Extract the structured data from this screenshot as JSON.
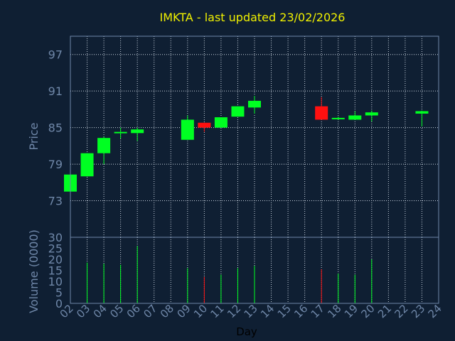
{
  "title": "IMKTA - last updated 23/02/2026",
  "colors": {
    "background": "#0f1f33",
    "frame": "#6f87a8",
    "grid": "#c8d2de",
    "axis_text": "#6f87a8",
    "title": "#f0f000",
    "up": "#00ff22",
    "down": "#ff1010",
    "xlabel": "#000000"
  },
  "chart_data": [
    {
      "type": "candlestick",
      "ylabel": "Price",
      "yticks": [
        73,
        79,
        85,
        91,
        97
      ],
      "ylim": [
        67,
        100
      ],
      "grid": true,
      "candles": [
        {
          "x": "02",
          "open": 74.5,
          "high": 77.3,
          "low": 74.5,
          "close": 77.3
        },
        {
          "x": "03",
          "open": 77.0,
          "high": 80.8,
          "low": 77.0,
          "close": 80.8
        },
        {
          "x": "04",
          "open": 80.8,
          "high": 83.5,
          "low": 79.0,
          "close": 83.3
        },
        {
          "x": "05",
          "open": 84.1,
          "high": 85.0,
          "low": 83.2,
          "close": 84.3
        },
        {
          "x": "06",
          "open": 84.1,
          "high": 85.0,
          "low": 82.8,
          "close": 84.7
        },
        {
          "x": "09",
          "open": 83.0,
          "high": 87.0,
          "low": 83.0,
          "close": 86.3
        },
        {
          "x": "10",
          "open": 85.8,
          "high": 85.8,
          "low": 84.3,
          "close": 85.0
        },
        {
          "x": "11",
          "open": 85.0,
          "high": 86.7,
          "low": 85.0,
          "close": 86.7
        },
        {
          "x": "12",
          "open": 86.8,
          "high": 88.5,
          "low": 86.8,
          "close": 88.5
        },
        {
          "x": "13",
          "open": 88.3,
          "high": 90.2,
          "low": 87.3,
          "close": 89.4
        },
        {
          "x": "17",
          "open": 88.5,
          "high": 90.0,
          "low": 86.3,
          "close": 86.3
        },
        {
          "x": "18",
          "open": 86.5,
          "high": 86.8,
          "low": 86.3,
          "close": 86.6
        },
        {
          "x": "19",
          "open": 86.3,
          "high": 87.7,
          "low": 86.3,
          "close": 87.0
        },
        {
          "x": "20",
          "open": 87.0,
          "high": 87.8,
          "low": 86.0,
          "close": 87.5
        },
        {
          "x": "23",
          "open": 87.3,
          "high": 87.8,
          "low": 85.2,
          "close": 87.7
        }
      ]
    },
    {
      "type": "bar",
      "ylabel": "Volume (0000)",
      "yticks": [
        0,
        5,
        10,
        15,
        20,
        25,
        30
      ],
      "ylim": [
        0,
        30
      ],
      "xlabel": "Day",
      "categories": [
        "02",
        "03",
        "04",
        "05",
        "06",
        "07",
        "08",
        "09",
        "10",
        "11",
        "12",
        "13",
        "14",
        "15",
        "16",
        "17",
        "18",
        "19",
        "20",
        "21",
        "22",
        "23",
        "24"
      ],
      "volumes": [
        {
          "x": "03",
          "value": 18.5,
          "dir": "up"
        },
        {
          "x": "04",
          "value": 18.0,
          "dir": "up"
        },
        {
          "x": "05",
          "value": 17.5,
          "dir": "up"
        },
        {
          "x": "06",
          "value": 26.0,
          "dir": "up"
        },
        {
          "x": "09",
          "value": 16.0,
          "dir": "up"
        },
        {
          "x": "10",
          "value": 12.0,
          "dir": "down"
        },
        {
          "x": "11",
          "value": 13.0,
          "dir": "up"
        },
        {
          "x": "12",
          "value": 16.0,
          "dir": "up"
        },
        {
          "x": "13",
          "value": 17.0,
          "dir": "up"
        },
        {
          "x": "17",
          "value": 15.5,
          "dir": "down"
        },
        {
          "x": "18",
          "value": 13.5,
          "dir": "up"
        },
        {
          "x": "19",
          "value": 13.0,
          "dir": "up"
        },
        {
          "x": "20",
          "value": 20.0,
          "dir": "up"
        }
      ]
    }
  ]
}
